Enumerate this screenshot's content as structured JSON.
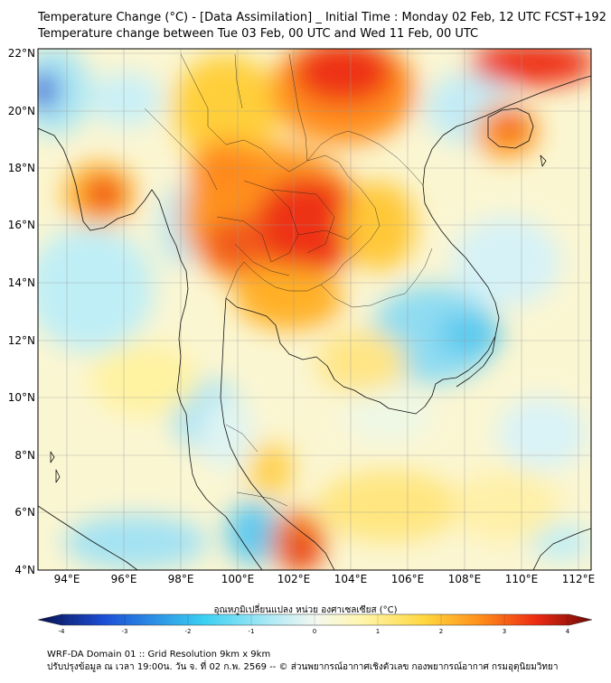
{
  "header": {
    "line1": "Temperature Change (°C) - [Data Assimilation] _ Initial Time : Monday 02 Feb, 12 UTC FCST+192",
    "line2": "Temperature change between Tue 03 Feb, 00 UTC and Wed 11 Feb, 00 UTC"
  },
  "map": {
    "lat_labels": [
      "22°N",
      "20°N",
      "18°N",
      "16°N",
      "14°N",
      "12°N",
      "10°N",
      "8°N",
      "6°N",
      "4°N"
    ],
    "lon_labels": [
      "94°E",
      "96°E",
      "98°E",
      "100°E",
      "102°E",
      "104°E",
      "106°E",
      "108°E",
      "110°E",
      "112°E"
    ],
    "lat_values": [
      22,
      20,
      18,
      16,
      14,
      12,
      10,
      8,
      6,
      4
    ],
    "lon_values": [
      94,
      96,
      98,
      100,
      102,
      104,
      106,
      108,
      110,
      112
    ],
    "extent": {
      "lon_min": 93,
      "lon_max": 112.5,
      "lat_min": 4,
      "lat_max": 22.2
    }
  },
  "colorbar": {
    "title": "อุณหภูมิเปลี่ยนแปลง หน่วย องศาเซลเซียส (°C)",
    "ticks": [
      "-4",
      "-3",
      "-2",
      "-1",
      "0",
      "1",
      "2",
      "3",
      "4"
    ],
    "min": -4,
    "max": 4,
    "colors": {
      "darkblue": "#08104f",
      "blue": "#1d4fd6",
      "cyan": "#3bd0f2",
      "lightcyan": "#aeeaf5",
      "white": "#f4f8f0",
      "lightyellow": "#fff7b0",
      "yellow": "#ffd63c",
      "orange": "#ff8c1a",
      "red": "#ec2a12",
      "darkred": "#6e0a06"
    }
  },
  "footer": {
    "line1": "WRF-DA Domain 01 :: Grid Resolution 9km x 9km",
    "line2": "ปรับปรุงข้อมูล ณ เวลา 19:00น. วัน จ. ที่ 02 ก.พ. 2569 -- © ส่วนพยากรณ์อากาศเชิงตัวเลข กองพยากรณ์อากาศ กรมอุตุนิยมวิทยา"
  }
}
